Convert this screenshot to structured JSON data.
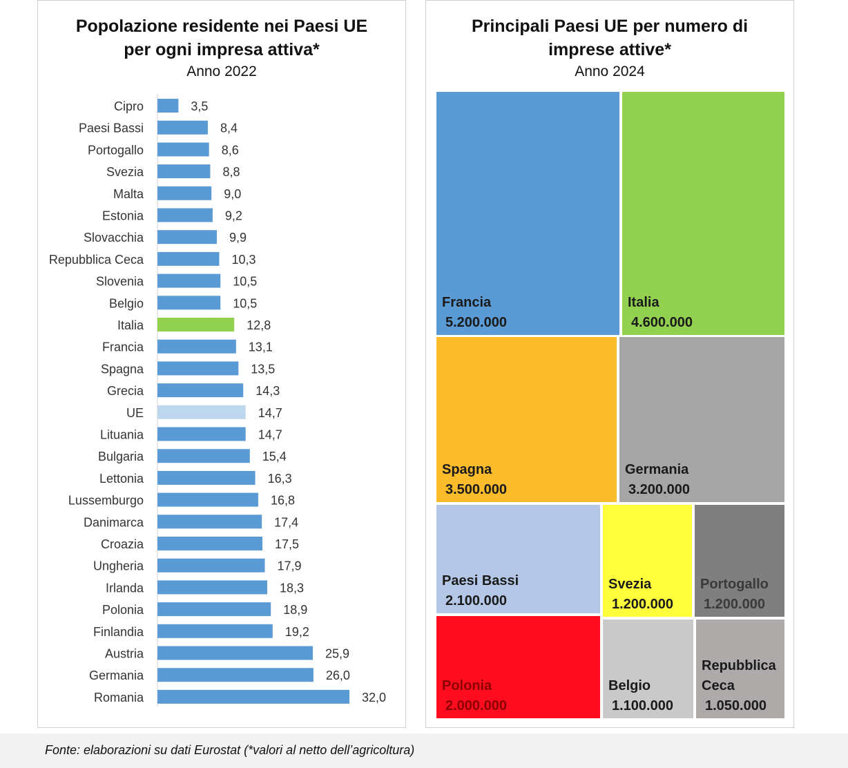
{
  "chart_data": [
    {
      "type": "bar",
      "orientation": "horizontal",
      "title_lines": [
        "Popolazione residente nei Paesi UE",
        "per ogni impresa attiva*"
      ],
      "subtitle": "Anno 2022",
      "categories": [
        "Cipro",
        "Paesi Bassi",
        "Portogallo",
        "Svezia",
        "Malta",
        "Estonia",
        "Slovacchia",
        "Repubblica Ceca",
        "Slovenia",
        "Belgio",
        "Italia",
        "Francia",
        "Spagna",
        "Grecia",
        "UE",
        "Lituania",
        "Bulgaria",
        "Lettonia",
        "Lussemburgo",
        "Danimarca",
        "Croazia",
        "Ungheria",
        "Irlanda",
        "Polonia",
        "Finlandia",
        "Austria",
        "Germania",
        "Romania"
      ],
      "values": [
        3.5,
        8.4,
        8.6,
        8.8,
        9.0,
        9.2,
        9.9,
        10.3,
        10.5,
        10.5,
        12.8,
        13.1,
        13.5,
        14.3,
        14.7,
        14.7,
        15.4,
        16.3,
        16.8,
        17.4,
        17.5,
        17.9,
        18.3,
        18.9,
        19.2,
        25.9,
        26.0,
        32.0
      ],
      "value_labels": [
        "3,5",
        "8,4",
        "8,6",
        "8,8",
        "9,0",
        "9,2",
        "9,9",
        "10,3",
        "10,5",
        "10,5",
        "12,8",
        "13,1",
        "13,5",
        "14,3",
        "14,7",
        "14,7",
        "15,4",
        "16,3",
        "16,8",
        "17,4",
        "17,5",
        "17,9",
        "18,3",
        "18,9",
        "19,2",
        "25,9",
        "26,0",
        "32,0"
      ],
      "xlim": [
        0,
        35
      ],
      "grid": false,
      "colors": {
        "default": "#5b9bd5",
        "Italia": "#92d050",
        "UE": "#bdd7ee"
      }
    },
    {
      "type": "treemap",
      "title_lines": [
        "Principali Paesi UE per numero di",
        "imprese attive*"
      ],
      "subtitle": "Anno 2024",
      "items": [
        {
          "name": "Francia",
          "value": 5200000,
          "label": "5.200.000",
          "color": "#5b9bd5",
          "text_color": "#1a1a1a"
        },
        {
          "name": "Italia",
          "value": 4600000,
          "label": "4.600.000",
          "color": "#92d050",
          "text_color": "#1a1a1a"
        },
        {
          "name": "Spagna",
          "value": 3500000,
          "label": "3.500.000",
          "color": "#fbbc2b",
          "text_color": "#1a1a1a"
        },
        {
          "name": "Germania",
          "value": 3200000,
          "label": "3.200.000",
          "color": "#a6a6a6",
          "text_color": "#1a1a1a"
        },
        {
          "name": "Paesi Bassi",
          "value": 2100000,
          "label": "2.100.000",
          "color": "#b4c7e7",
          "text_color": "#1a1a1a"
        },
        {
          "name": "Svezia",
          "value": 1200000,
          "label": "1.200.000",
          "color": "#ffff3c",
          "text_color": "#1a1a1a"
        },
        {
          "name": "Portogallo",
          "value": 1200000,
          "label": "1.200.000",
          "color": "#7f7f7f",
          "text_color": "#3a3a3a"
        },
        {
          "name": "Polonia",
          "value": 2000000,
          "label": "2.000.000",
          "color": "#ff0d1e",
          "text_color": "#8b0000"
        },
        {
          "name": "Belgio",
          "value": 1100000,
          "label": "1.100.000",
          "color": "#c9c9c9",
          "text_color": "#1a1a1a"
        },
        {
          "name": "Repubblica Ceca",
          "label_lines": [
            "Repubblica",
            "Ceca"
          ],
          "value": 1050000,
          "label": "1.050.000",
          "color": "#aeaaaa",
          "text_color": "#1a1a1a"
        }
      ]
    }
  ],
  "footer": {
    "source": "Fonte: elaborazioni su dati Eurostat (*valori al netto dell’agricoltura)"
  }
}
